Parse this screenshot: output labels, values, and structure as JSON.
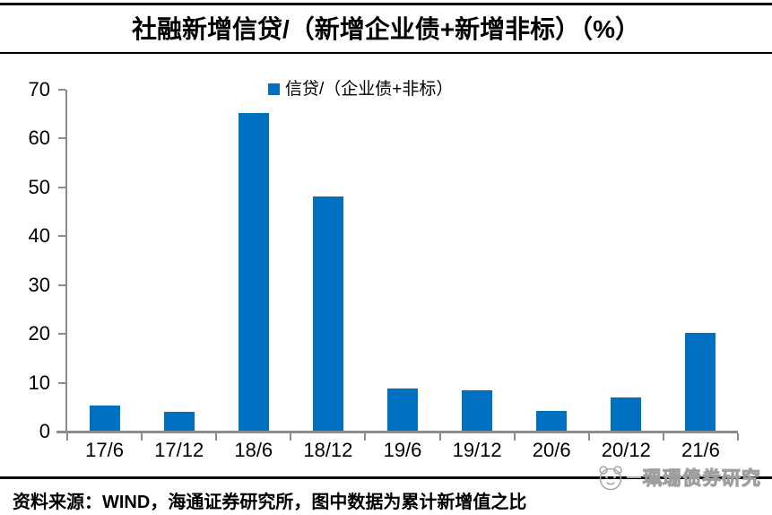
{
  "title": "社融新增信贷/（新增企业债+新增非标）（%）",
  "legend": {
    "label": "信贷/（企业债+非标）",
    "color": "#0070C0"
  },
  "footer": {
    "source": "资料来源：WIND，海通证券研究所，图中数据为累计新增值之比"
  },
  "watermark": {
    "text": "珮珊债券研究",
    "icon": "panda-face-logo",
    "color": "#9f9f9f"
  },
  "chart_data": {
    "type": "bar",
    "title": "社融新增信贷/（新增企业债+新增非标）（%）",
    "categories": [
      "17/6",
      "17/12",
      "18/6",
      "18/12",
      "19/6",
      "19/12",
      "20/6",
      "20/12",
      "21/6"
    ],
    "values": [
      5.2,
      3.8,
      65,
      48,
      8.6,
      8.3,
      4.1,
      6.8,
      20
    ],
    "series_name": "信贷/（企业债+非标）",
    "xlabel": "",
    "ylabel": "",
    "ylim": [
      0,
      70
    ],
    "yticks": [
      0,
      10,
      20,
      30,
      40,
      50,
      60,
      70
    ],
    "legend_position": "top-center",
    "grid": false,
    "bar_color": "#0070C0",
    "axis_color": "#8c8c8c"
  }
}
